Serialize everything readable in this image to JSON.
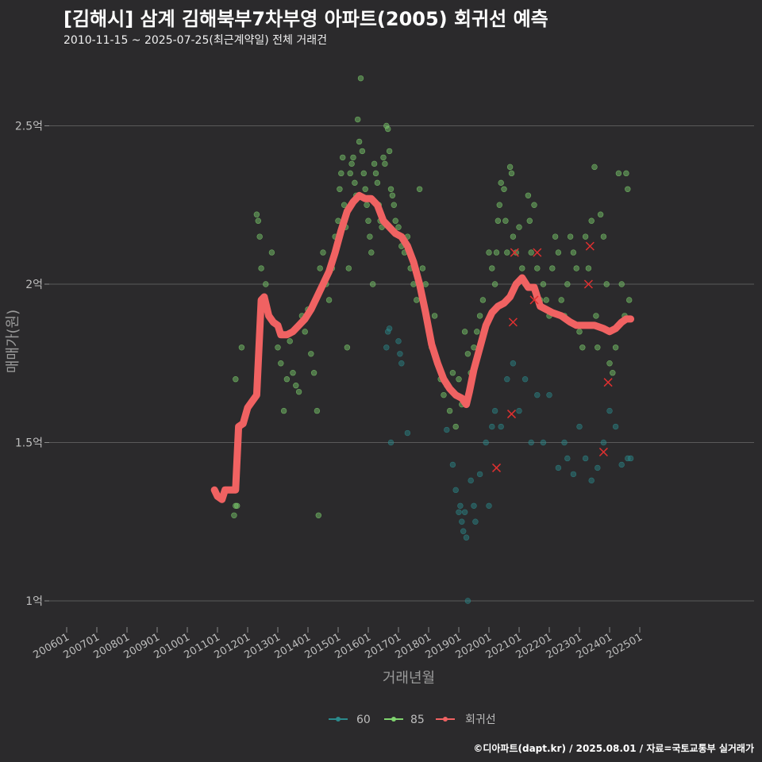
{
  "title": "[김해시] 삼계 김해북부7차부영 아파트(2005) 회귀선 예측",
  "subtitle": "2010-11-15 ~ 2025-07-25(최근계약일) 전체 거래건",
  "caption": "©디아파트(dapt.kr) / 2025.08.01 / 자료=국토교통부 실거래가",
  "colors": {
    "background": "#2b2a2c",
    "s60": "#2b8a8c",
    "s85": "#7fd36e",
    "regression": "#f06262",
    "grid": "#5a5a5a",
    "cancel": "#e03030"
  },
  "chart_data": {
    "type": "scatter",
    "xlabel": "거래년월",
    "ylabel": "매매가(원)",
    "xlim": [
      "2006-01",
      "2025-12"
    ],
    "ylim": [
      0.93,
      2.75
    ],
    "y_ticks": [
      {
        "value": 1.0,
        "label": "1억"
      },
      {
        "value": 1.5,
        "label": "1.5억"
      },
      {
        "value": 2.0,
        "label": "2억"
      },
      {
        "value": 2.5,
        "label": "2.5억"
      }
    ],
    "x_ticks": [
      {
        "value": 2006.0,
        "label": "200601"
      },
      {
        "value": 2007.0,
        "label": "200701"
      },
      {
        "value": 2008.0,
        "label": "200801"
      },
      {
        "value": 2009.0,
        "label": "200901"
      },
      {
        "value": 2010.0,
        "label": "201001"
      },
      {
        "value": 2011.0,
        "label": "201101"
      },
      {
        "value": 2012.0,
        "label": "201201"
      },
      {
        "value": 2013.0,
        "label": "201301"
      },
      {
        "value": 2014.0,
        "label": "201401"
      },
      {
        "value": 2015.0,
        "label": "201501"
      },
      {
        "value": 2016.0,
        "label": "201601"
      },
      {
        "value": 2017.0,
        "label": "201701"
      },
      {
        "value": 2018.0,
        "label": "201801"
      },
      {
        "value": 2019.0,
        "label": "201901"
      },
      {
        "value": 2020.0,
        "label": "202001"
      },
      {
        "value": 2021.0,
        "label": "202101"
      },
      {
        "value": 2022.0,
        "label": "202201"
      },
      {
        "value": 2023.0,
        "label": "202301"
      },
      {
        "value": 2024.0,
        "label": "202401"
      },
      {
        "value": 2025.0,
        "label": "202501"
      }
    ],
    "legend": {
      "position": "bottom",
      "items": [
        {
          "name": "60",
          "color": "#2b8a8c"
        },
        {
          "name": "85",
          "color": "#7fd36e"
        },
        {
          "name": "회귀선",
          "color": "#f06262"
        }
      ]
    },
    "regression_line": [
      [
        2010.9,
        1.35
      ],
      [
        2011.0,
        1.33
      ],
      [
        2011.15,
        1.32
      ],
      [
        2011.25,
        1.35
      ],
      [
        2011.45,
        1.35
      ],
      [
        2011.6,
        1.35
      ],
      [
        2011.7,
        1.55
      ],
      [
        2011.85,
        1.56
      ],
      [
        2012.0,
        1.61
      ],
      [
        2012.15,
        1.63
      ],
      [
        2012.3,
        1.65
      ],
      [
        2012.45,
        1.95
      ],
      [
        2012.55,
        1.96
      ],
      [
        2012.7,
        1.9
      ],
      [
        2012.85,
        1.88
      ],
      [
        2013.0,
        1.87
      ],
      [
        2013.1,
        1.84
      ],
      [
        2013.3,
        1.84
      ],
      [
        2013.5,
        1.85
      ],
      [
        2013.7,
        1.87
      ],
      [
        2013.9,
        1.89
      ],
      [
        2014.1,
        1.92
      ],
      [
        2014.3,
        1.96
      ],
      [
        2014.5,
        2.0
      ],
      [
        2014.7,
        2.04
      ],
      [
        2014.9,
        2.1
      ],
      [
        2015.1,
        2.17
      ],
      [
        2015.3,
        2.23
      ],
      [
        2015.5,
        2.26
      ],
      [
        2015.7,
        2.28
      ],
      [
        2015.9,
        2.27
      ],
      [
        2016.1,
        2.27
      ],
      [
        2016.3,
        2.25
      ],
      [
        2016.5,
        2.2
      ],
      [
        2016.7,
        2.18
      ],
      [
        2016.9,
        2.16
      ],
      [
        2017.1,
        2.15
      ],
      [
        2017.3,
        2.12
      ],
      [
        2017.5,
        2.07
      ],
      [
        2017.7,
        2.0
      ],
      [
        2017.9,
        1.91
      ],
      [
        2018.1,
        1.81
      ],
      [
        2018.3,
        1.75
      ],
      [
        2018.5,
        1.7
      ],
      [
        2018.7,
        1.67
      ],
      [
        2018.9,
        1.65
      ],
      [
        2019.1,
        1.64
      ],
      [
        2019.25,
        1.62
      ],
      [
        2019.35,
        1.66
      ],
      [
        2019.5,
        1.73
      ],
      [
        2019.7,
        1.8
      ],
      [
        2019.9,
        1.87
      ],
      [
        2020.1,
        1.91
      ],
      [
        2020.3,
        1.93
      ],
      [
        2020.5,
        1.94
      ],
      [
        2020.7,
        1.96
      ],
      [
        2020.9,
        2.0
      ],
      [
        2021.1,
        2.02
      ],
      [
        2021.3,
        1.99
      ],
      [
        2021.5,
        1.99
      ],
      [
        2021.7,
        1.93
      ],
      [
        2021.9,
        1.92
      ],
      [
        2022.1,
        1.91
      ],
      [
        2022.4,
        1.9
      ],
      [
        2022.7,
        1.88
      ],
      [
        2022.9,
        1.87
      ],
      [
        2023.2,
        1.87
      ],
      [
        2023.5,
        1.87
      ],
      [
        2023.8,
        1.86
      ],
      [
        2024.0,
        1.85
      ],
      [
        2024.2,
        1.86
      ],
      [
        2024.4,
        1.88
      ],
      [
        2024.55,
        1.89
      ],
      [
        2024.7,
        1.89
      ]
    ],
    "series": [
      {
        "name": "85",
        "color": "#7fd36e",
        "points": [
          [
            2011.55,
            1.27
          ],
          [
            2011.6,
            1.3
          ],
          [
            2011.65,
            1.3
          ],
          [
            2011.6,
            1.7
          ],
          [
            2011.8,
            1.8
          ],
          [
            2012.3,
            2.22
          ],
          [
            2012.35,
            2.2
          ],
          [
            2012.4,
            2.15
          ],
          [
            2012.45,
            2.05
          ],
          [
            2012.6,
            2.0
          ],
          [
            2012.8,
            2.1
          ],
          [
            2013.0,
            1.8
          ],
          [
            2013.1,
            1.75
          ],
          [
            2013.2,
            1.6
          ],
          [
            2013.3,
            1.7
          ],
          [
            2013.4,
            1.82
          ],
          [
            2013.5,
            1.72
          ],
          [
            2013.6,
            1.68
          ],
          [
            2013.7,
            1.66
          ],
          [
            2013.8,
            1.9
          ],
          [
            2013.9,
            1.85
          ],
          [
            2014.0,
            1.92
          ],
          [
            2014.1,
            1.78
          ],
          [
            2014.2,
            1.72
          ],
          [
            2014.3,
            1.6
          ],
          [
            2014.35,
            1.27
          ],
          [
            2014.4,
            2.05
          ],
          [
            2014.5,
            2.1
          ],
          [
            2014.6,
            2.0
          ],
          [
            2014.7,
            1.95
          ],
          [
            2014.8,
            2.05
          ],
          [
            2014.9,
            2.15
          ],
          [
            2015.0,
            2.2
          ],
          [
            2015.05,
            2.3
          ],
          [
            2015.1,
            2.35
          ],
          [
            2015.15,
            2.4
          ],
          [
            2015.2,
            2.25
          ],
          [
            2015.25,
            2.18
          ],
          [
            2015.3,
            1.8
          ],
          [
            2015.35,
            2.05
          ],
          [
            2015.4,
            2.35
          ],
          [
            2015.45,
            2.38
          ],
          [
            2015.5,
            2.4
          ],
          [
            2015.55,
            2.32
          ],
          [
            2015.6,
            2.28
          ],
          [
            2015.65,
            2.52
          ],
          [
            2015.7,
            2.45
          ],
          [
            2015.75,
            2.65
          ],
          [
            2015.8,
            2.42
          ],
          [
            2015.85,
            2.35
          ],
          [
            2015.9,
            2.3
          ],
          [
            2015.95,
            2.25
          ],
          [
            2016.0,
            2.2
          ],
          [
            2016.05,
            2.15
          ],
          [
            2016.1,
            2.1
          ],
          [
            2016.15,
            2.0
          ],
          [
            2016.2,
            2.38
          ],
          [
            2016.25,
            2.35
          ],
          [
            2016.3,
            2.32
          ],
          [
            2016.35,
            2.25
          ],
          [
            2016.4,
            2.2
          ],
          [
            2016.45,
            2.18
          ],
          [
            2016.5,
            2.4
          ],
          [
            2016.55,
            2.38
          ],
          [
            2016.6,
            2.5
          ],
          [
            2016.65,
            2.49
          ],
          [
            2016.7,
            2.42
          ],
          [
            2016.75,
            2.3
          ],
          [
            2016.8,
            2.28
          ],
          [
            2016.85,
            2.25
          ],
          [
            2016.9,
            2.2
          ],
          [
            2017.0,
            2.18
          ],
          [
            2017.1,
            2.12
          ],
          [
            2017.2,
            2.1
          ],
          [
            2017.3,
            2.15
          ],
          [
            2017.4,
            2.05
          ],
          [
            2017.5,
            2.0
          ],
          [
            2017.6,
            1.95
          ],
          [
            2017.7,
            2.3
          ],
          [
            2017.8,
            2.05
          ],
          [
            2017.9,
            2.0
          ],
          [
            2018.0,
            1.85
          ],
          [
            2018.1,
            1.8
          ],
          [
            2018.2,
            1.9
          ],
          [
            2018.3,
            1.75
          ],
          [
            2018.4,
            1.7
          ],
          [
            2018.5,
            1.65
          ],
          [
            2018.6,
            1.68
          ],
          [
            2018.7,
            1.6
          ],
          [
            2018.8,
            1.72
          ],
          [
            2018.9,
            1.55
          ],
          [
            2019.0,
            1.7
          ],
          [
            2019.1,
            1.62
          ],
          [
            2019.2,
            1.85
          ],
          [
            2019.3,
            1.78
          ],
          [
            2019.4,
            1.72
          ],
          [
            2019.5,
            1.8
          ],
          [
            2019.6,
            1.85
          ],
          [
            2019.7,
            1.9
          ],
          [
            2019.8,
            1.95
          ],
          [
            2020.0,
            2.1
          ],
          [
            2020.1,
            2.05
          ],
          [
            2020.2,
            2.0
          ],
          [
            2020.25,
            2.1
          ],
          [
            2020.3,
            2.2
          ],
          [
            2020.35,
            2.25
          ],
          [
            2020.4,
            2.32
          ],
          [
            2020.5,
            2.3
          ],
          [
            2020.55,
            2.2
          ],
          [
            2020.6,
            2.1
          ],
          [
            2020.7,
            2.37
          ],
          [
            2020.75,
            2.35
          ],
          [
            2020.8,
            2.15
          ],
          [
            2020.9,
            2.1
          ],
          [
            2021.0,
            2.18
          ],
          [
            2021.1,
            2.05
          ],
          [
            2021.2,
            2.0
          ],
          [
            2021.3,
            2.28
          ],
          [
            2021.35,
            2.2
          ],
          [
            2021.4,
            2.1
          ],
          [
            2021.5,
            2.25
          ],
          [
            2021.6,
            2.05
          ],
          [
            2021.7,
            1.95
          ],
          [
            2021.8,
            2.0
          ],
          [
            2021.9,
            1.95
          ],
          [
            2022.0,
            1.9
          ],
          [
            2022.1,
            2.05
          ],
          [
            2022.2,
            2.15
          ],
          [
            2022.3,
            2.1
          ],
          [
            2022.4,
            1.95
          ],
          [
            2022.5,
            1.9
          ],
          [
            2022.6,
            2.0
          ],
          [
            2022.7,
            2.15
          ],
          [
            2022.8,
            2.1
          ],
          [
            2022.9,
            2.05
          ],
          [
            2023.0,
            1.85
          ],
          [
            2023.1,
            1.8
          ],
          [
            2023.2,
            2.15
          ],
          [
            2023.3,
            2.05
          ],
          [
            2023.4,
            2.2
          ],
          [
            2023.5,
            2.37
          ],
          [
            2023.55,
            1.9
          ],
          [
            2023.6,
            1.8
          ],
          [
            2023.7,
            2.22
          ],
          [
            2023.8,
            2.15
          ],
          [
            2023.9,
            2.0
          ],
          [
            2024.0,
            1.75
          ],
          [
            2024.1,
            1.72
          ],
          [
            2024.2,
            1.8
          ],
          [
            2024.3,
            2.35
          ],
          [
            2024.4,
            2.0
          ],
          [
            2024.5,
            1.9
          ],
          [
            2024.55,
            2.35
          ],
          [
            2024.6,
            2.3
          ],
          [
            2024.65,
            1.95
          ]
        ]
      },
      {
        "name": "60",
        "color": "#2b8a8c",
        "points": [
          [
            2016.6,
            1.8
          ],
          [
            2016.65,
            1.85
          ],
          [
            2016.7,
            1.86
          ],
          [
            2016.75,
            1.5
          ],
          [
            2017.0,
            1.82
          ],
          [
            2017.05,
            1.78
          ],
          [
            2017.1,
            1.75
          ],
          [
            2017.3,
            1.53
          ],
          [
            2018.6,
            1.54
          ],
          [
            2018.8,
            1.43
          ],
          [
            2018.9,
            1.35
          ],
          [
            2019.0,
            1.28
          ],
          [
            2019.05,
            1.3
          ],
          [
            2019.1,
            1.25
          ],
          [
            2019.15,
            1.22
          ],
          [
            2019.2,
            1.28
          ],
          [
            2019.25,
            1.2
          ],
          [
            2019.3,
            1.0
          ],
          [
            2019.4,
            1.38
          ],
          [
            2019.5,
            1.3
          ],
          [
            2019.55,
            1.25
          ],
          [
            2019.7,
            1.4
          ],
          [
            2019.9,
            1.5
          ],
          [
            2020.0,
            1.3
          ],
          [
            2020.1,
            1.55
          ],
          [
            2020.2,
            1.6
          ],
          [
            2020.4,
            1.55
          ],
          [
            2020.6,
            1.7
          ],
          [
            2020.8,
            1.75
          ],
          [
            2021.0,
            1.6
          ],
          [
            2021.2,
            1.7
          ],
          [
            2021.4,
            1.5
          ],
          [
            2021.6,
            1.65
          ],
          [
            2021.8,
            1.5
          ],
          [
            2022.0,
            1.65
          ],
          [
            2022.3,
            1.42
          ],
          [
            2022.5,
            1.5
          ],
          [
            2022.6,
            1.45
          ],
          [
            2022.8,
            1.4
          ],
          [
            2023.0,
            1.55
          ],
          [
            2023.2,
            1.45
          ],
          [
            2023.4,
            1.38
          ],
          [
            2023.6,
            1.42
          ],
          [
            2023.8,
            1.5
          ],
          [
            2024.0,
            1.6
          ],
          [
            2024.2,
            1.55
          ],
          [
            2024.4,
            1.43
          ],
          [
            2024.6,
            1.45
          ],
          [
            2024.7,
            1.45
          ]
        ]
      }
    ],
    "cancelled": [
      [
        2020.25,
        1.42
      ],
      [
        2020.75,
        1.59
      ],
      [
        2020.8,
        1.88
      ],
      [
        2020.85,
        2.1
      ],
      [
        2021.5,
        1.95
      ],
      [
        2021.6,
        2.1
      ],
      [
        2023.3,
        2.0
      ],
      [
        2023.35,
        2.12
      ],
      [
        2023.8,
        1.47
      ],
      [
        2023.95,
        1.69
      ]
    ]
  }
}
